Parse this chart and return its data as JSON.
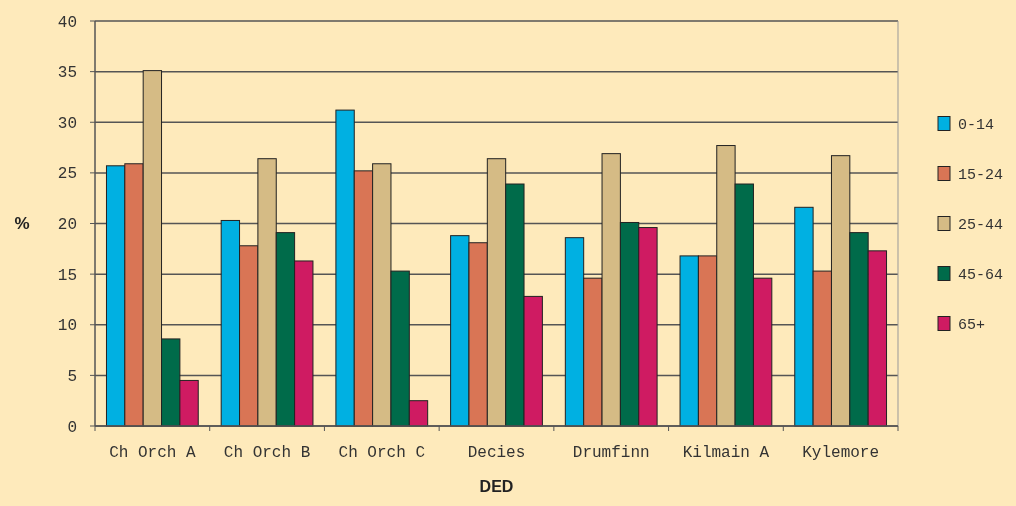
{
  "chart_data": {
    "type": "bar",
    "xlabel": "DED",
    "ylabel": "%",
    "categories": [
      "Ch Orch A",
      "Ch Orch B",
      "Ch Orch C",
      "Decies",
      "Drumfinn",
      "Kilmain A",
      "Kylemore"
    ],
    "series": [
      {
        "name": "0-14",
        "color": "#00b0e2",
        "values": [
          25.7,
          20.3,
          31.2,
          18.8,
          18.6,
          16.8,
          21.6
        ]
      },
      {
        "name": "15-24",
        "color": "#d97555",
        "values": [
          25.9,
          17.8,
          25.2,
          18.1,
          14.6,
          16.8,
          15.3
        ]
      },
      {
        "name": "25-44",
        "color": "#d5bb85",
        "values": [
          35.1,
          26.4,
          25.9,
          26.4,
          26.9,
          27.7,
          26.7
        ]
      },
      {
        "name": "45-64",
        "color": "#006b4a",
        "values": [
          8.6,
          19.1,
          15.3,
          23.9,
          20.1,
          23.9,
          19.1
        ]
      },
      {
        "name": "65+",
        "color": "#cf1b62",
        "values": [
          4.5,
          16.3,
          2.5,
          12.8,
          19.6,
          14.6,
          17.3
        ]
      }
    ],
    "ylim": [
      0,
      40
    ],
    "yticks": [
      0,
      5,
      10,
      15,
      20,
      25,
      30,
      35,
      40
    ],
    "grid": "y",
    "legend": "right"
  }
}
